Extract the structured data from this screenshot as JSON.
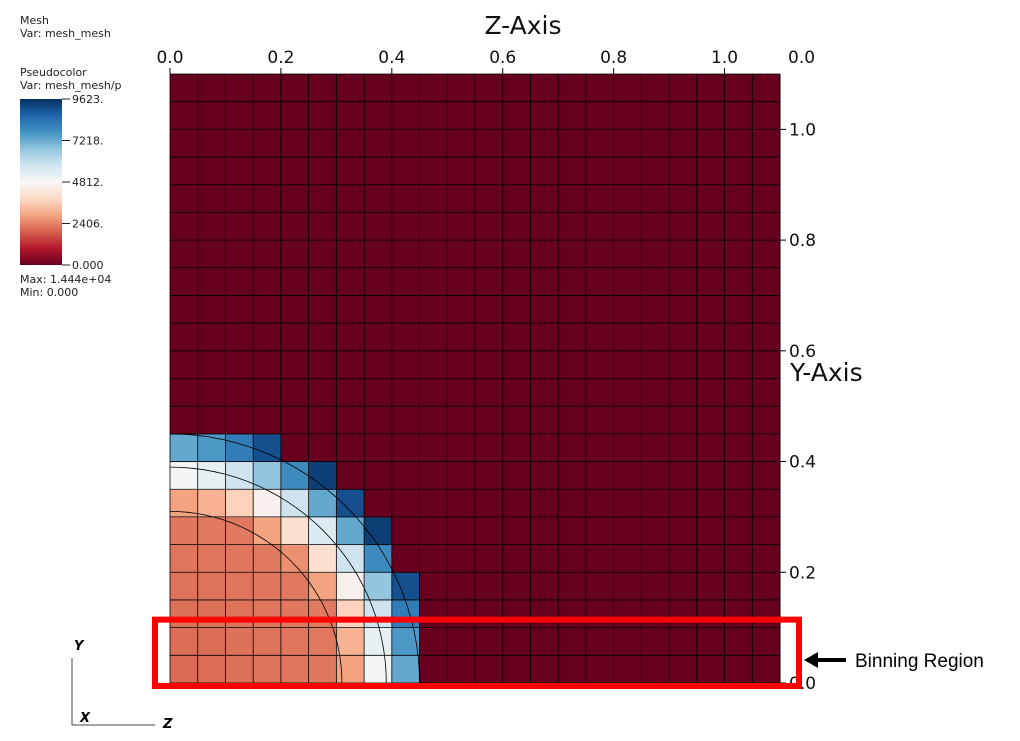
{
  "legend": {
    "mesh_title": "Mesh",
    "mesh_var": "Var: mesh_mesh",
    "pc_title": "Pseudocolor",
    "pc_var": "Var: mesh_mesh/p",
    "max_text": "Max:  1.444e+04",
    "min_text": "Min:  0.000",
    "tick_labels": [
      "9623.",
      "7218.",
      "4812.",
      "2406.",
      "0.000"
    ],
    "colors": [
      "#67001f",
      "#b2182b",
      "#d6604d",
      "#f4a582",
      "#fddbc7",
      "#f7f7f7",
      "#d1e5f0",
      "#92c5de",
      "#4393c3",
      "#2166ac",
      "#053061"
    ]
  },
  "chart_data": {
    "type": "heatmap",
    "xlabel": "Z-Axis",
    "ylabel": "Y-Axis",
    "x_ticks": [
      "0.0",
      "0.2",
      "0.4",
      "0.6",
      "0.8",
      "1.0"
    ],
    "y_ticks": [
      "0.0",
      "0.2",
      "0.4",
      "0.6",
      "0.8",
      "1.0"
    ],
    "extra_tick": "0.0",
    "xlim": [
      0,
      1.1
    ],
    "ylim": [
      0,
      1.1
    ],
    "grid_n": 22,
    "colormap_range": [
      0,
      9623
    ],
    "field": {
      "center": [
        0,
        0
      ],
      "front_radius": 0.45,
      "peak_value": 9623,
      "inner_value": 2400,
      "outer_value": 0
    }
  },
  "annotation": {
    "label": "Binning Region",
    "y_range": [
      0,
      0.1
    ],
    "color": "#ff0000"
  },
  "triad": {
    "y": "Y",
    "x": "X",
    "z": "Z"
  }
}
